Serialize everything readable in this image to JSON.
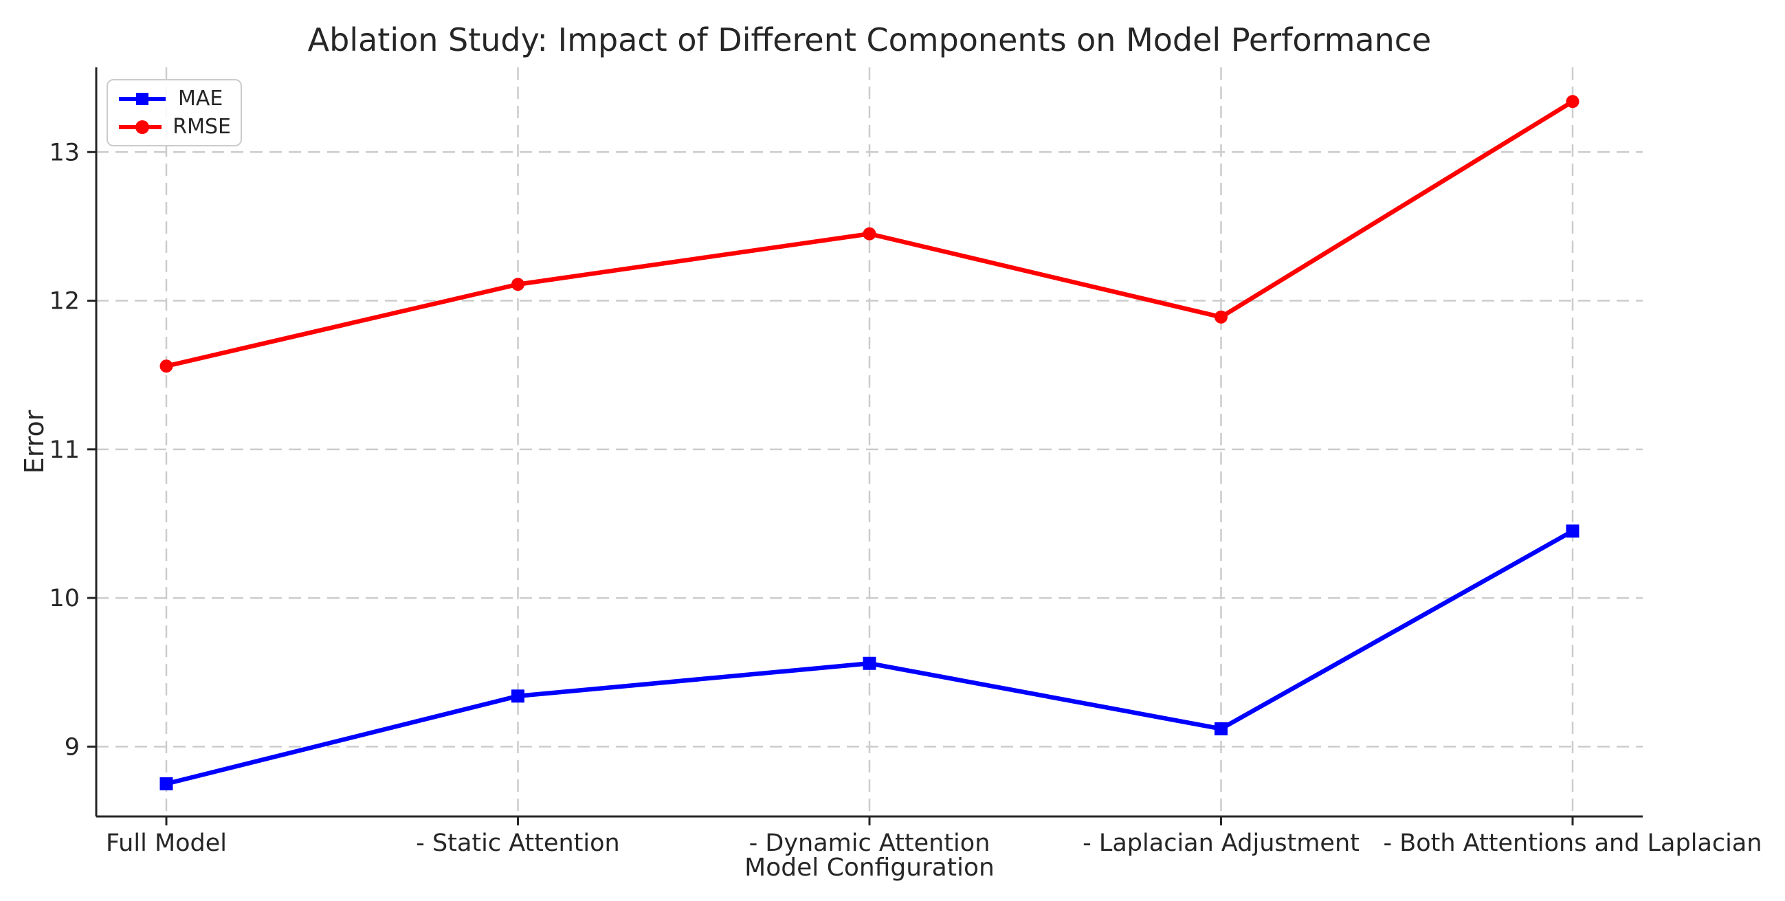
{
  "chart_data": {
    "type": "line",
    "title": "Ablation Study: Impact of Different Components on Model Performance",
    "xlabel": "Model Configuration",
    "ylabel": "Error",
    "categories": [
      "Full Model",
      "- Static Attention",
      "- Dynamic Attention",
      "- Laplacian Adjustment",
      "- Both Attentions and Laplacian"
    ],
    "series": [
      {
        "name": "MAE",
        "marker": "square",
        "color": "#0000ff",
        "values": [
          8.75,
          9.34,
          9.56,
          9.12,
          10.45
        ]
      },
      {
        "name": "RMSE",
        "marker": "circle",
        "color": "#ff0000",
        "values": [
          11.56,
          12.11,
          12.45,
          11.89,
          13.34
        ]
      }
    ],
    "yticks": [
      9,
      10,
      11,
      12,
      13
    ],
    "ylim": [
      8.53,
      13.57
    ],
    "grid": {
      "show": true,
      "style": "dashed",
      "color": "#cccccc"
    },
    "legend_position": "upper-left",
    "text_color": "#262626",
    "spine_color": "#262626"
  }
}
